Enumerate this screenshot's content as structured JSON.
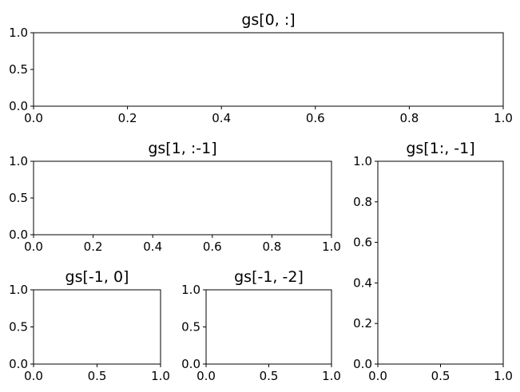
{
  "chart_data": [
    {
      "type": "empty",
      "title": "gs[0, :]",
      "xlim": [
        0,
        1
      ],
      "ylim": [
        0,
        1
      ],
      "xticks": [
        "0.0",
        "0.2",
        "0.4",
        "0.6",
        "0.8",
        "1.0"
      ],
      "yticks": [
        "0.0",
        "0.5",
        "1.0"
      ]
    },
    {
      "type": "empty",
      "title": "gs[1, :-1]",
      "xlim": [
        0,
        1
      ],
      "ylim": [
        0,
        1
      ],
      "xticks": [
        "0.0",
        "0.2",
        "0.4",
        "0.6",
        "0.8",
        "1.0"
      ],
      "yticks": [
        "0.0",
        "0.5",
        "1.0"
      ]
    },
    {
      "type": "empty",
      "title": "gs[1:, -1]",
      "xlim": [
        0,
        1
      ],
      "ylim": [
        0,
        1
      ],
      "xticks": [
        "0.0",
        "0.5",
        "1.0"
      ],
      "yticks": [
        "0.0",
        "0.2",
        "0.4",
        "0.6",
        "0.8",
        "1.0"
      ]
    },
    {
      "type": "empty",
      "title": "gs[-1, 0]",
      "xlim": [
        0,
        1
      ],
      "ylim": [
        0,
        1
      ],
      "xticks": [
        "0.0",
        "0.5",
        "1.0"
      ],
      "yticks": [
        "0.0",
        "0.5",
        "1.0"
      ]
    },
    {
      "type": "empty",
      "title": "gs[-1, -2]",
      "xlim": [
        0,
        1
      ],
      "ylim": [
        0,
        1
      ],
      "xticks": [
        "0.0",
        "0.5",
        "1.0"
      ],
      "yticks": [
        "0.0",
        "0.5",
        "1.0"
      ]
    }
  ]
}
